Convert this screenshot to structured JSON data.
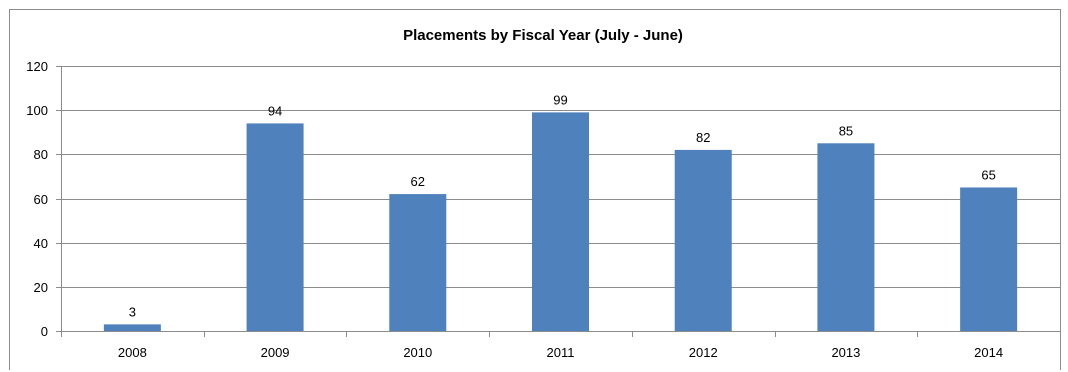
{
  "chart_data": {
    "type": "bar",
    "title": "Placements by Fiscal Year (July - June)",
    "xlabel": "",
    "ylabel": "",
    "categories": [
      "2008",
      "2009",
      "2010",
      "2011",
      "2012",
      "2013",
      "2014"
    ],
    "values": [
      3,
      94,
      62,
      99,
      82,
      85,
      65
    ],
    "ylim": [
      0,
      120
    ],
    "yticks": [
      0,
      20,
      40,
      60,
      80,
      100,
      120
    ],
    "grid": true,
    "legend": "none",
    "bar_color": "#4f81bd",
    "grid_color": "#8c8c8c"
  }
}
